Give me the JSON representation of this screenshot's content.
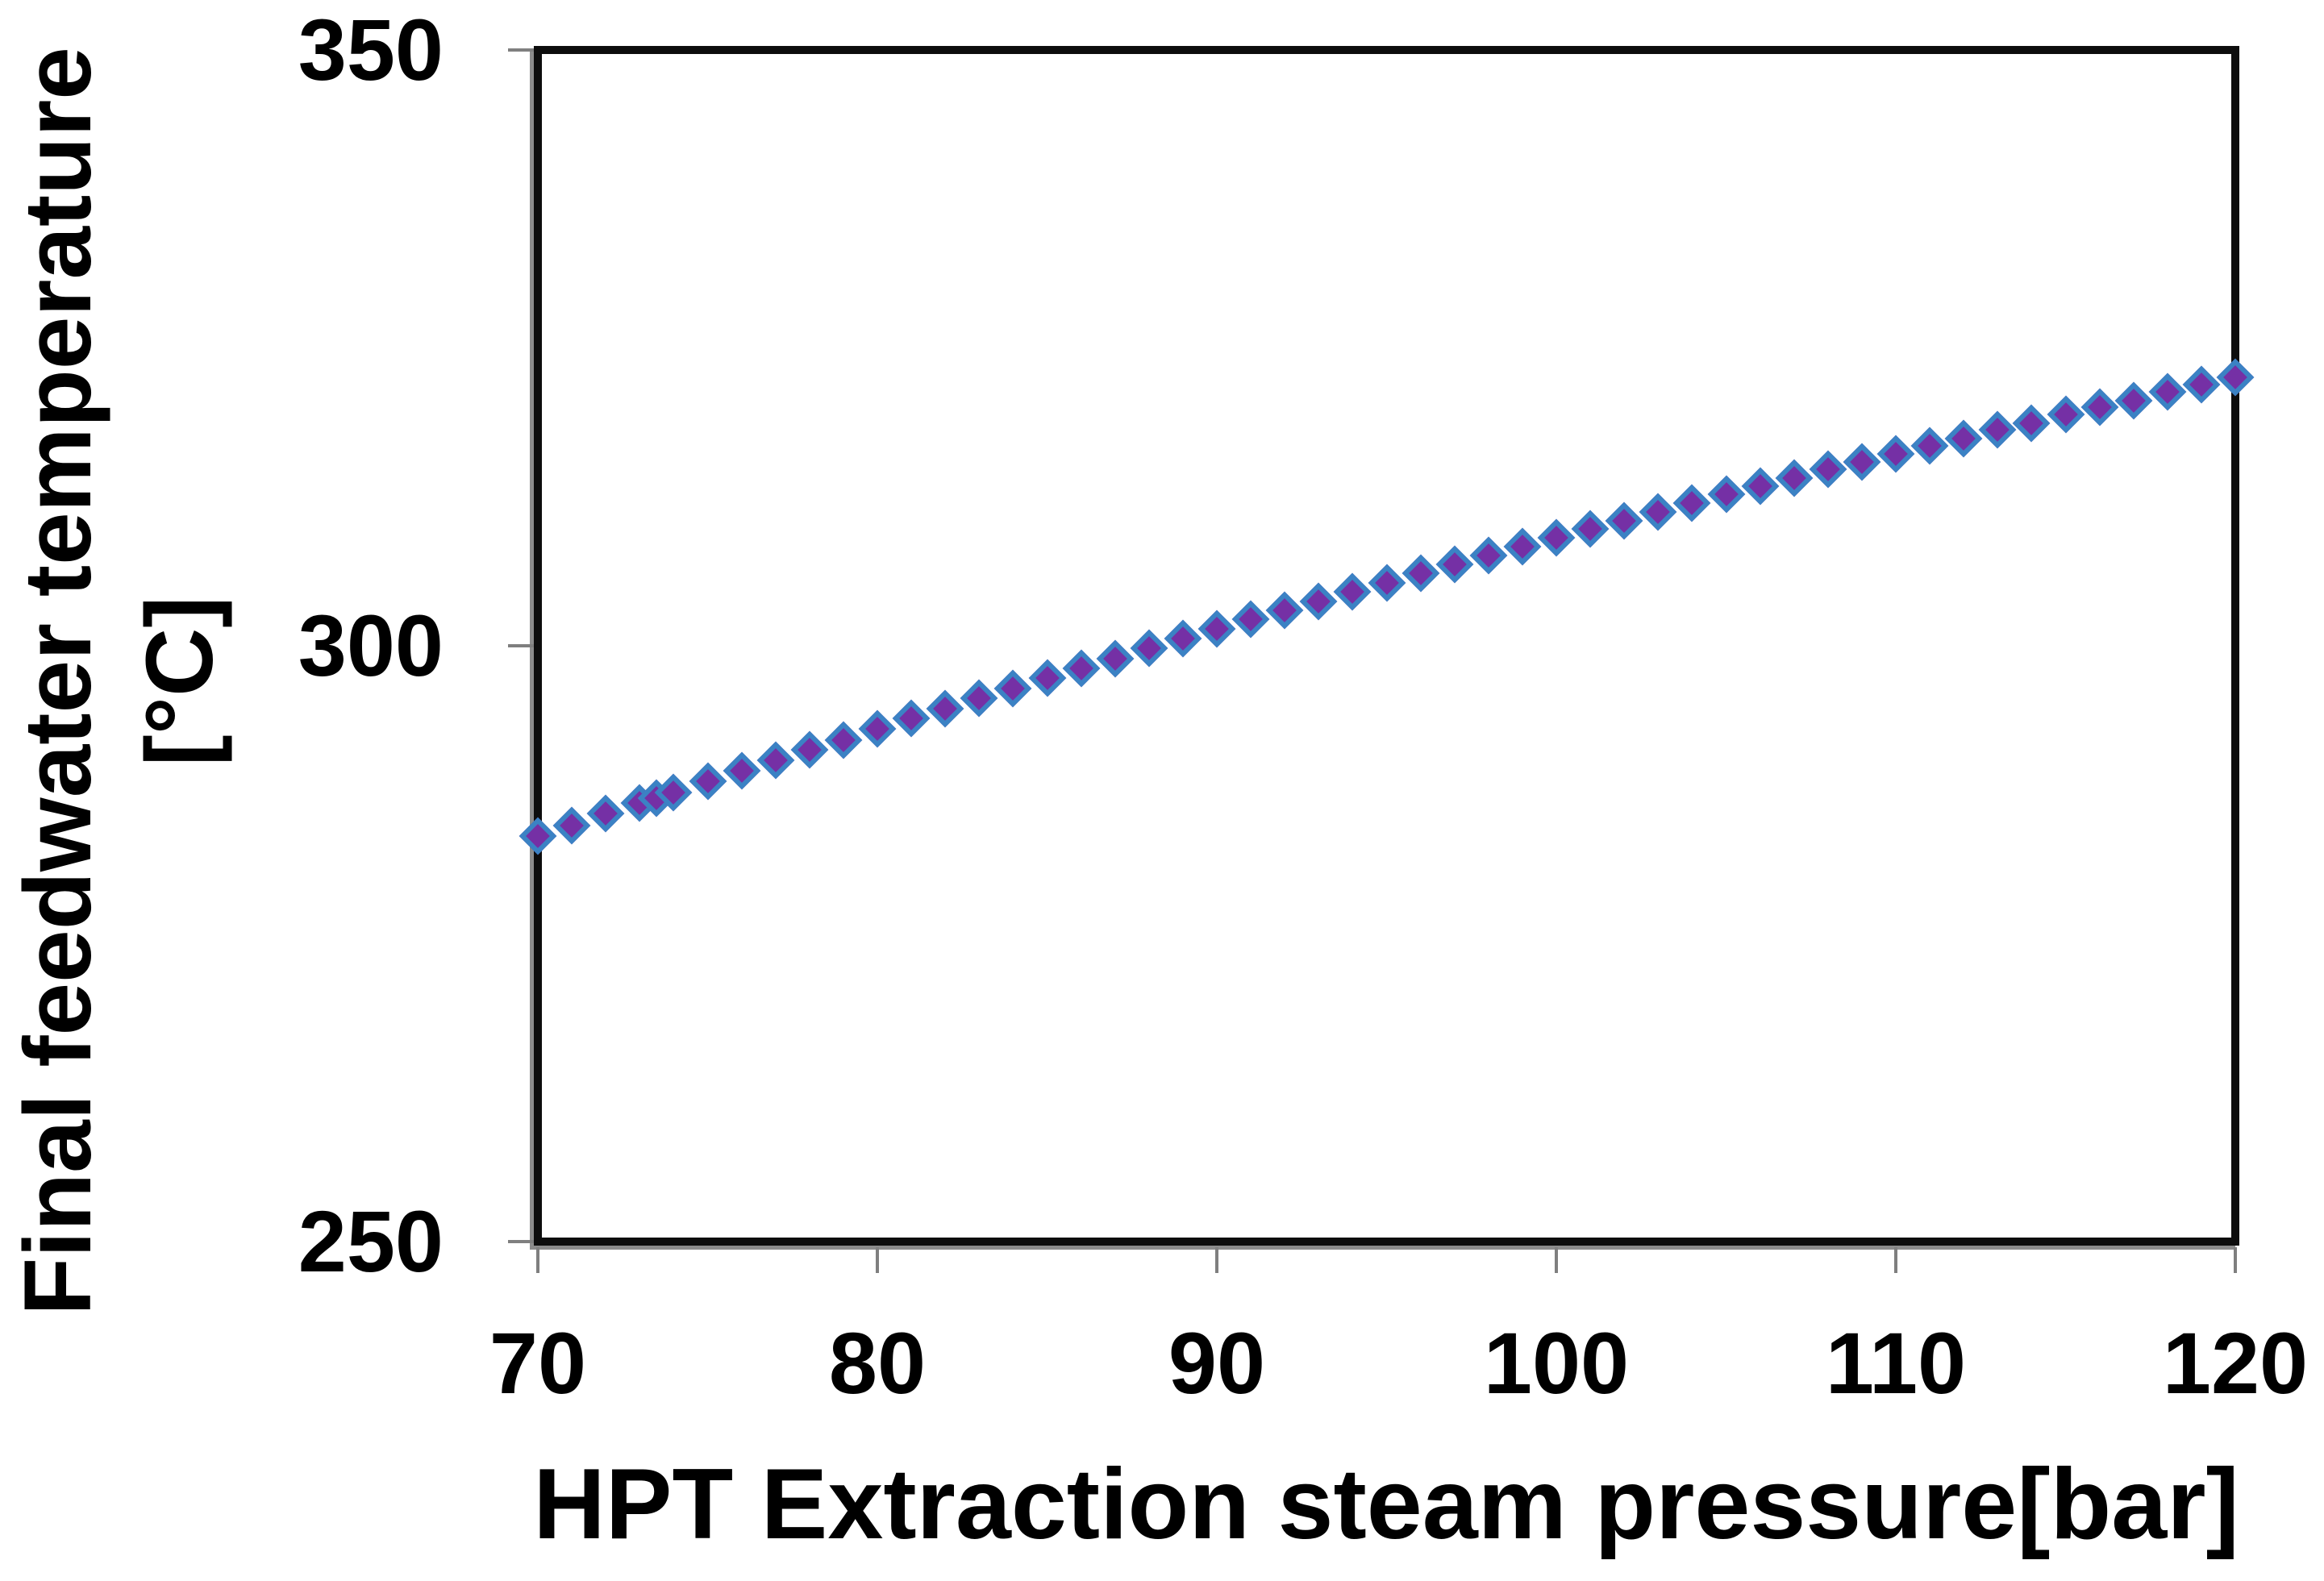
{
  "figure": {
    "background": "#ffffff",
    "frame_color": "#0d0d0d",
    "tick_color": "#7f7f7f",
    "text_color": "#000000"
  },
  "x_axis": {
    "title": "HPT Extraction steam pressure[bar]",
    "tick_labels": [
      "70",
      "80",
      "90",
      "100",
      "110",
      "120"
    ]
  },
  "y_axis": {
    "title_line1": "Final feedwater temperature",
    "title_line2": "[°C]",
    "tick_labels": [
      "250",
      "300",
      "350"
    ]
  },
  "chart_data": {
    "type": "scatter",
    "title": "",
    "xlabel": "HPT Extraction steam pressure[bar]",
    "ylabel": "Final feedwater temperature [°C]",
    "xlim": [
      70,
      120
    ],
    "ylim": [
      250,
      350
    ],
    "x_ticks": [
      70,
      80,
      90,
      100,
      110,
      120
    ],
    "y_ticks": [
      250,
      300,
      350
    ],
    "grid": false,
    "legend": false,
    "marker": {
      "shape": "diamond",
      "fill": "#7530A5",
      "border": "#3B82C4",
      "border_px": 6
    },
    "series": [
      {
        "name": "Final feedwater temperature",
        "x": [
          70,
          71,
          72,
          73,
          73.5,
          74,
          75,
          76,
          77,
          78,
          79,
          80,
          81,
          82,
          83,
          84,
          85,
          86,
          87,
          88,
          89,
          90,
          91,
          92,
          93,
          94,
          95,
          96,
          97,
          98,
          99,
          100,
          101,
          102,
          103,
          104,
          105,
          106,
          107,
          108,
          109,
          110,
          111,
          112,
          113,
          114,
          115,
          116,
          117,
          118,
          119,
          120
        ],
        "y": [
          284.0,
          284.9,
          285.9,
          286.8,
          287.2,
          287.7,
          288.6,
          289.5,
          290.4,
          291.3,
          292.1,
          293.0,
          293.9,
          294.7,
          295.6,
          296.4,
          297.3,
          298.1,
          298.9,
          299.8,
          300.6,
          301.4,
          302.2,
          303.0,
          303.7,
          304.5,
          305.3,
          306.1,
          306.8,
          307.6,
          308.3,
          309.1,
          309.8,
          310.5,
          311.2,
          312.0,
          312.7,
          313.4,
          314.1,
          314.8,
          315.4,
          316.1,
          316.8,
          317.4,
          318.1,
          318.7,
          319.4,
          320.0,
          320.6,
          321.3,
          321.9,
          322.5
        ]
      }
    ]
  }
}
